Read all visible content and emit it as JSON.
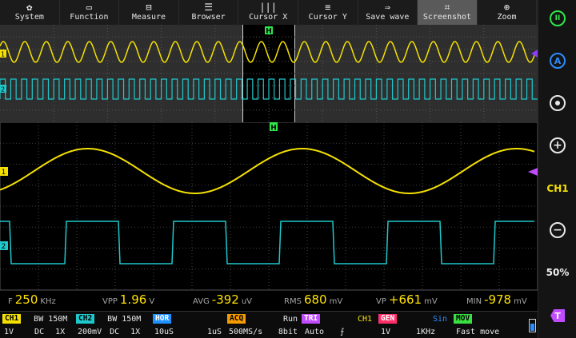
{
  "toolbar": {
    "items": [
      {
        "label": "System",
        "icon": "gear-icon",
        "glyph": "✿"
      },
      {
        "label": "Function",
        "icon": "function-icon",
        "glyph": "▭"
      },
      {
        "label": "Measure",
        "icon": "measure-icon",
        "glyph": "⊟"
      },
      {
        "label": "Browser",
        "icon": "database-icon",
        "glyph": "☰"
      },
      {
        "label": "Cursor X",
        "icon": "cursor-x-icon",
        "glyph": "|||"
      },
      {
        "label": "Cursor Y",
        "icon": "cursor-y-icon",
        "glyph": "≡"
      },
      {
        "label": "Save wave",
        "icon": "save-wave-icon",
        "glyph": "⇒"
      },
      {
        "label": "Screenshot",
        "icon": "crop-icon",
        "glyph": "⌗"
      },
      {
        "label": "Zoom",
        "icon": "zoom-icon",
        "glyph": "⊕"
      }
    ],
    "active": "Screenshot"
  },
  "rightbar": {
    "run_glyph": "II",
    "auto_glyph": "A",
    "ch_label": "CH1",
    "scale_label": "50%",
    "plus_glyph": "+",
    "minus_glyph": "−",
    "trigger_glyph": "T"
  },
  "markers": {
    "trigger_pos": "H",
    "ch1": "1",
    "ch2": "2",
    "trig_level": "T"
  },
  "measurements": {
    "f_label": "F",
    "f_value": "250",
    "f_unit": "KHz",
    "vpp_label": "VPP",
    "vpp_value": "1.96",
    "vpp_unit": "V",
    "avg_label": "AVG",
    "avg_value": "-392",
    "avg_unit": "uV",
    "rms_label": "RMS",
    "rms_value": "680",
    "rms_unit": "mV",
    "vp_label": "VP",
    "vp_value": "+661",
    "vp_unit": "mV",
    "min_label": "MIN",
    "min_value": "-978",
    "min_unit": "mV"
  },
  "status": {
    "ch1_tag": "CH1",
    "ch1_bw": "BW 150M",
    "ch1_scale": "1V",
    "ch1_coupling": "DC",
    "ch1_probe": "1X",
    "ch2_tag": "CH2",
    "ch2_bw": "BW 150M",
    "ch2_scale": "200mV",
    "ch2_coupling": "DC",
    "ch2_probe": "1X",
    "hor_tag": "HOR",
    "hor_scale": "10uS",
    "hor_pos": "1uS",
    "acq_tag": "ACQ",
    "acq_state": "Run",
    "acq_rate": "500MS/s",
    "acq_bits": "8bit",
    "tri_tag": "TRI",
    "tri_src": "CH1",
    "tri_mode": "Auto",
    "tri_edge": "⨍",
    "gen_tag": "GEN",
    "gen_wave": "Sin",
    "gen_amp": "1V",
    "gen_freq": "1KHz",
    "mov_tag": "MOV",
    "mov_mode": "Fast move"
  },
  "colors": {
    "ch1": "#f5e100",
    "ch2": "#1fc8cc",
    "hor": "#1e90ff",
    "acq": "#f59a00",
    "tri": "#c04bff",
    "gen": "#ff2f6a",
    "mov": "#39e040",
    "green": "#2ee84a",
    "blue": "#2a8cff"
  }
}
